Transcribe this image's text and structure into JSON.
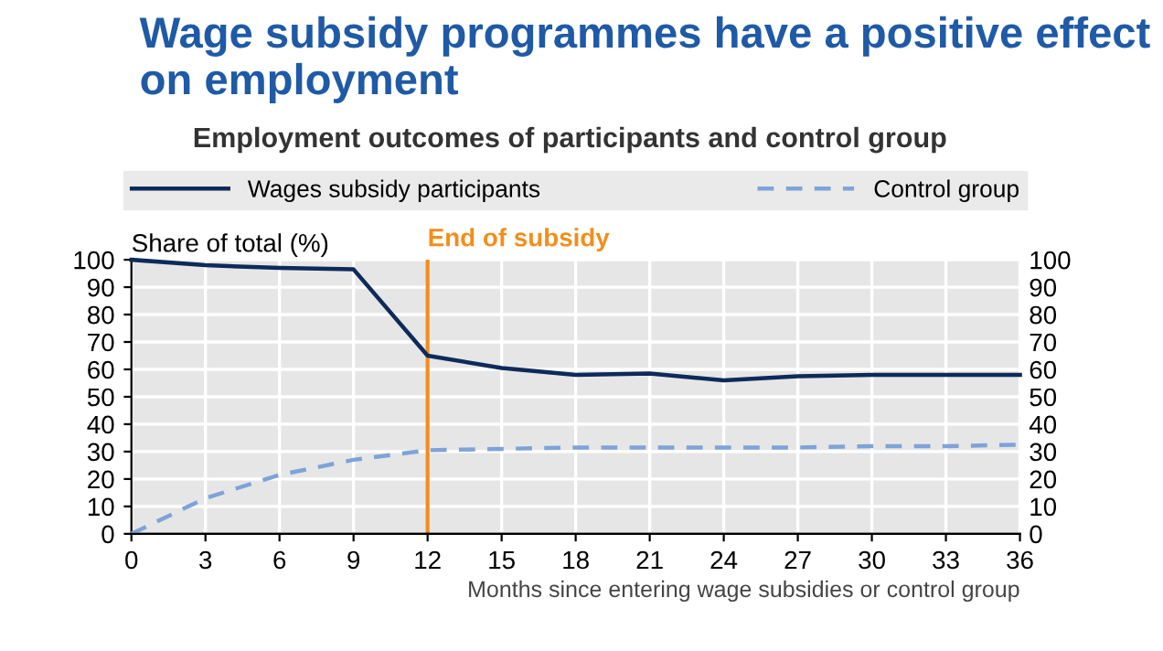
{
  "chart_data": {
    "type": "line",
    "title": "Wage subsidy programmes have a positive effect on employment",
    "subtitle": "Employment outcomes of participants and control group",
    "ylabel": "Share of total (%)",
    "xlabel": "Months since entering wage subsidies or control group",
    "x": [
      0,
      3,
      6,
      9,
      12,
      15,
      18,
      21,
      24,
      27,
      30,
      33,
      36
    ],
    "series": [
      {
        "name": "Wages subsidy participants",
        "color": "#0e2a5a",
        "line_style": "solid",
        "values": [
          100,
          98,
          97,
          96.5,
          65,
          60.5,
          58,
          58.5,
          56,
          57.5,
          58,
          58,
          58
        ]
      },
      {
        "name": "Control group",
        "color": "#7ea3d8",
        "line_style": "dashed",
        "values": [
          0,
          13,
          21.5,
          27,
          30.5,
          31,
          31.5,
          31.5,
          31.5,
          31.5,
          32,
          32,
          32.5
        ]
      }
    ],
    "xlim": [
      0,
      36
    ],
    "xticks": [
      0,
      3,
      6,
      9,
      12,
      15,
      18,
      21,
      24,
      27,
      30,
      33,
      36
    ],
    "ylim": [
      0,
      100
    ],
    "yticks": [
      0,
      10,
      20,
      30,
      40,
      50,
      60,
      70,
      80,
      90,
      100
    ],
    "y2lim": [
      0,
      100
    ],
    "y2ticks": [
      0,
      10,
      20,
      30,
      40,
      50,
      60,
      70,
      80,
      90,
      100
    ],
    "ref_lines": [
      {
        "axis": "x",
        "value": 12,
        "label": "End of subsidy",
        "color": "#f28e1c"
      }
    ],
    "grid": true,
    "legend": "top",
    "marker": "none"
  }
}
